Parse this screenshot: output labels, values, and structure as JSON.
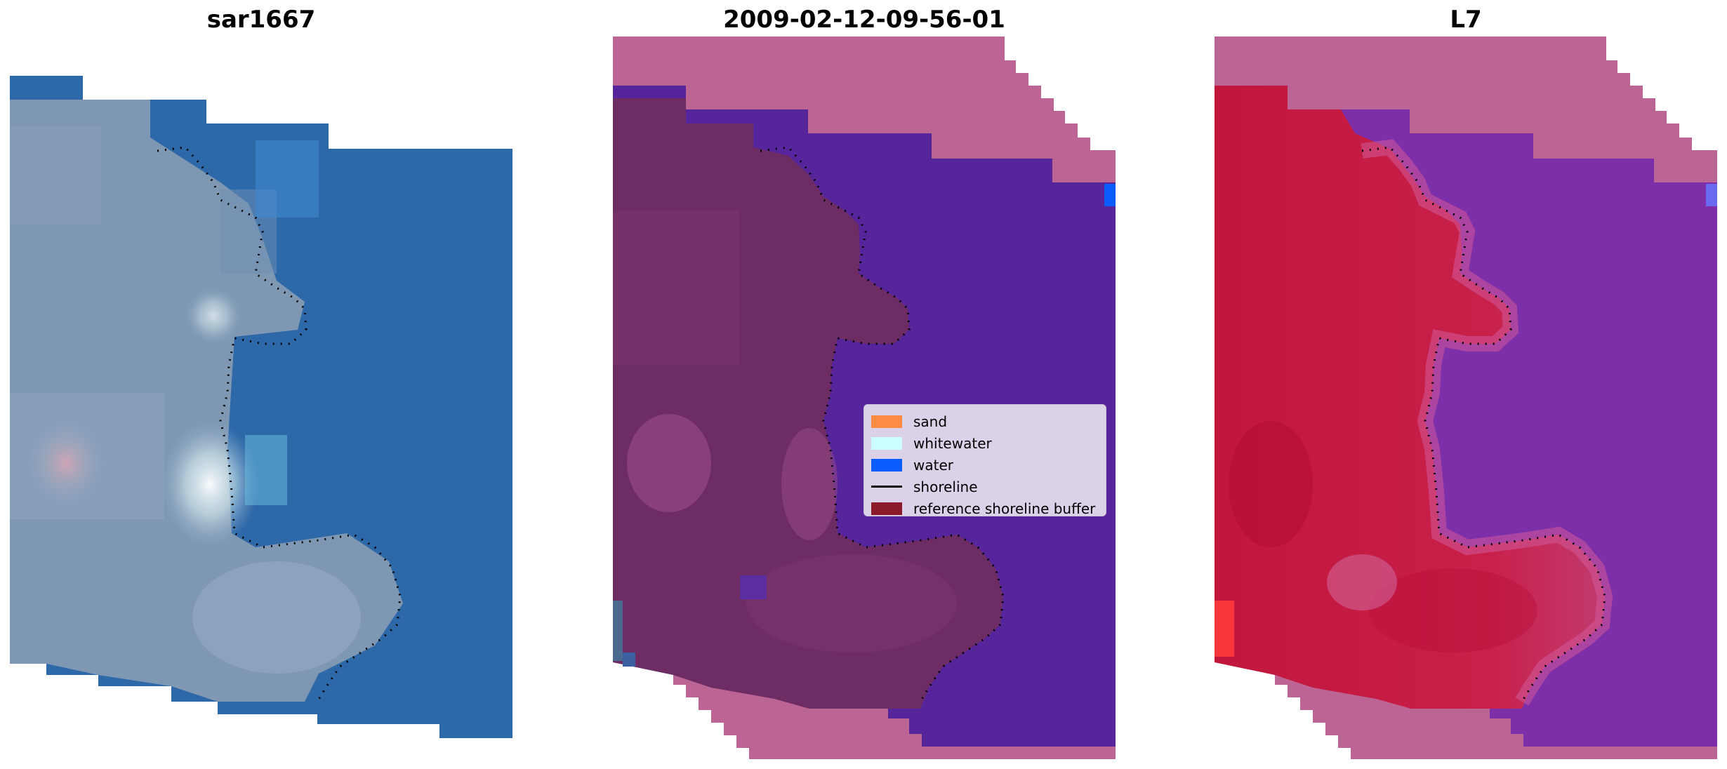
{
  "panels": [
    {
      "title": "sar1667"
    },
    {
      "title": "2009-02-12-09-56-01"
    },
    {
      "title": "L7"
    }
  ],
  "legend": {
    "items": [
      {
        "label": "sand",
        "color": "#ff8c45",
        "kind": "patch"
      },
      {
        "label": "whitewater",
        "color": "#ccffff",
        "kind": "patch"
      },
      {
        "label": "water",
        "color": "#0a5cff",
        "kind": "patch"
      },
      {
        "label": "shoreline",
        "color": "#000000",
        "kind": "line"
      },
      {
        "label": "reference shoreline buffer",
        "color": "#8b1a2a",
        "kind": "patch"
      }
    ]
  },
  "colors": {
    "rgb_water": "#2f6aa8",
    "rgb_land": "#7f98b4",
    "class_water": "#56239a",
    "class_land": "#6e2c63",
    "mask_pink": "#bc6494",
    "ndwi_land": "#c41a3f",
    "ndwi_water": "#7b2ea8"
  }
}
